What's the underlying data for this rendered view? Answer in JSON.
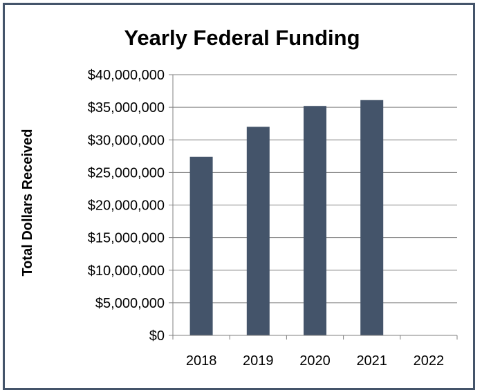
{
  "chart_data": {
    "type": "bar",
    "title": "Yearly Federal Funding",
    "xlabel": "",
    "ylabel": "Total Dollars Received",
    "categories": [
      "2018",
      "2019",
      "2020",
      "2021",
      "2022"
    ],
    "values": [
      27400000,
      32000000,
      35200000,
      36100000,
      null
    ],
    "ylim": [
      0,
      40000000
    ],
    "ytick_labels": [
      "$0",
      "$5,000,000",
      "$10,000,000",
      "$15,000,000",
      "$20,000,000",
      "$25,000,000",
      "$30,000,000",
      "$35,000,000",
      "$40,000,000"
    ],
    "ytick_values": [
      0,
      5000000,
      10000000,
      15000000,
      20000000,
      25000000,
      30000000,
      35000000,
      40000000
    ],
    "grid": true,
    "legend": "none",
    "bar_color": "#44546a",
    "frame_color": "#44546a",
    "grid_color": "#7f7f7f"
  }
}
